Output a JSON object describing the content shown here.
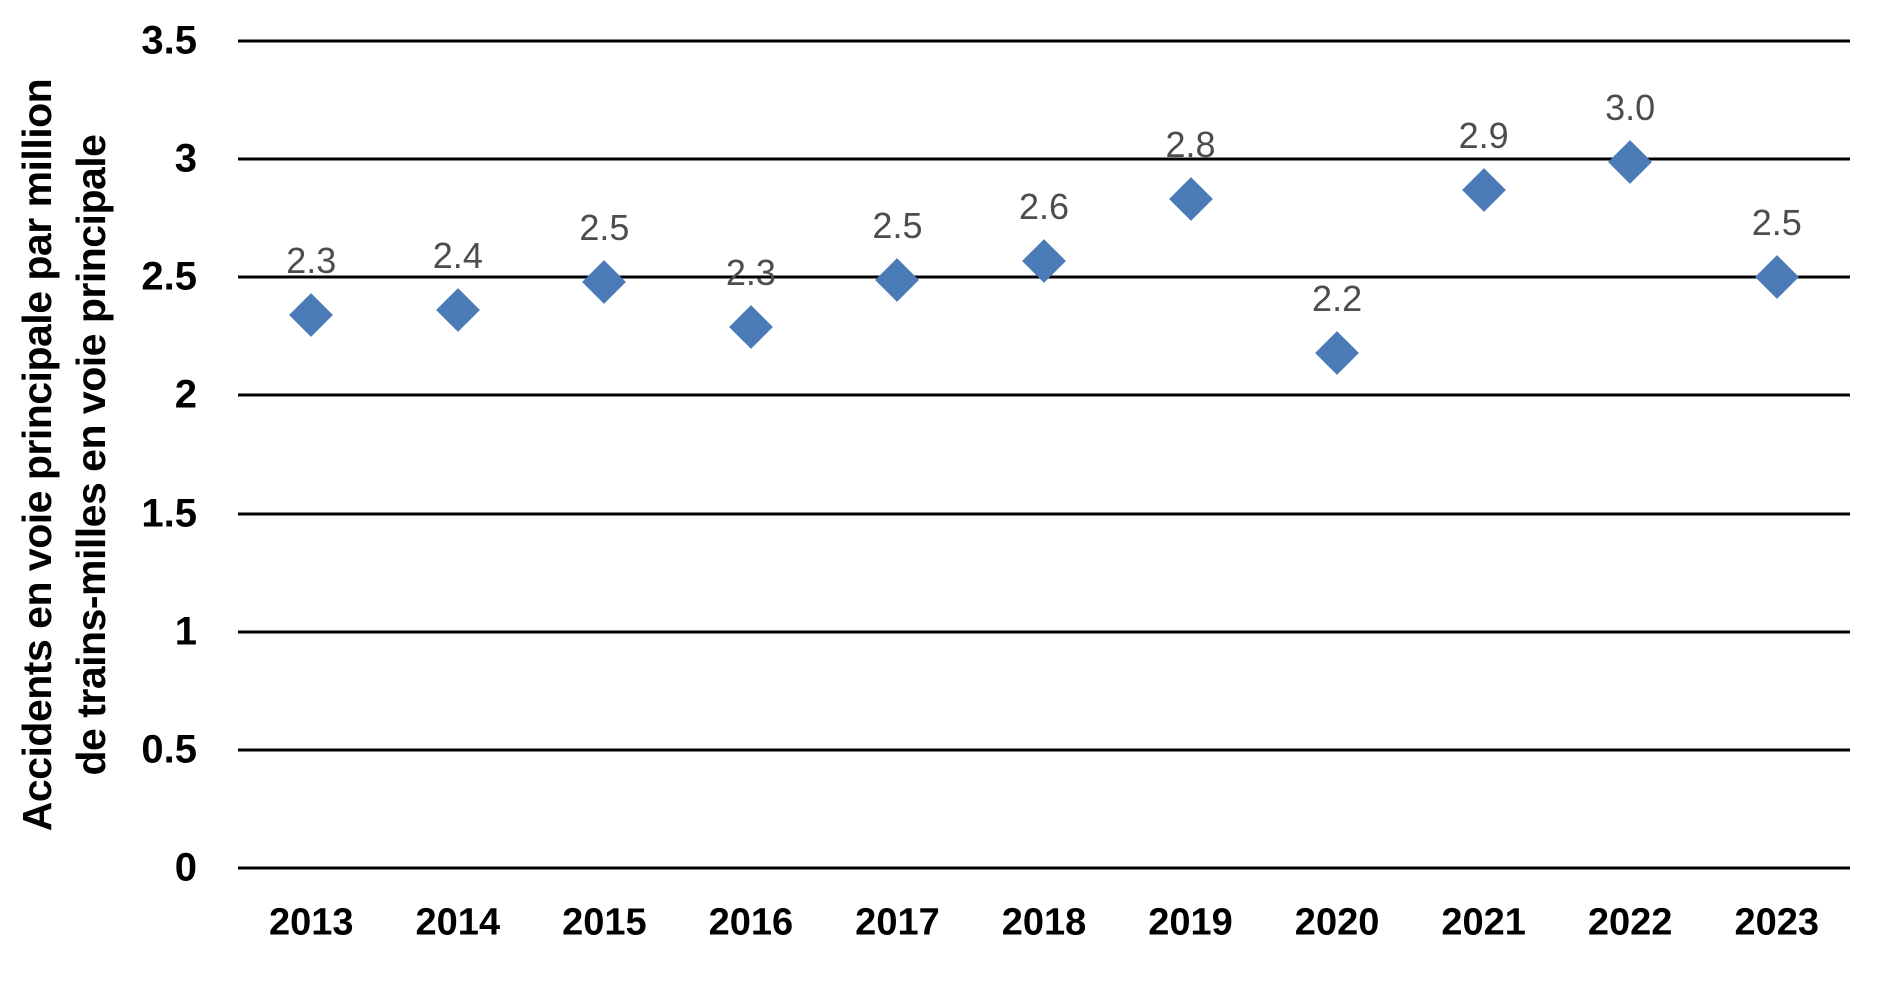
{
  "chart_data": {
    "type": "scatter",
    "title": "",
    "ylabel_lines": [
      "Accidents en voie principale par million",
      "de trains-milles en voie principale"
    ],
    "xlabel": "",
    "categories": [
      "2013",
      "2014",
      "2015",
      "2016",
      "2017",
      "2018",
      "2019",
      "2020",
      "2021",
      "2022",
      "2023"
    ],
    "series": [
      {
        "name": "Accidents en voie principale par million de trains-milles en voie principale",
        "values": [
          2.3,
          2.4,
          2.5,
          2.3,
          2.5,
          2.6,
          2.8,
          2.2,
          2.9,
          3.0,
          2.5
        ],
        "data_labels": [
          "2.3",
          "2.4",
          "2.5",
          "2.3",
          "2.5",
          "2.6",
          "2.8",
          "2.2",
          "2.9",
          "3.0",
          "2.5"
        ],
        "values_plotted": [
          2.34,
          2.36,
          2.48,
          2.29,
          2.49,
          2.57,
          2.83,
          2.18,
          2.87,
          2.99,
          2.5
        ]
      }
    ],
    "ylim": [
      0,
      3.5
    ],
    "yticks": [
      0,
      0.5,
      1,
      1.5,
      2,
      2.5,
      3,
      3.5
    ],
    "ytick_labels": [
      "0",
      "0.5",
      "1",
      "1.5",
      "2",
      "2.5",
      "3",
      "3.5"
    ],
    "grid": "horizontal",
    "legend": "none",
    "marker": "diamond",
    "colors": {
      "marker": "#4A7BB7",
      "data_label": "#4D4D4D",
      "gridline": "#000000",
      "axis_text": "#000000",
      "background": "#FFFFFF"
    }
  }
}
